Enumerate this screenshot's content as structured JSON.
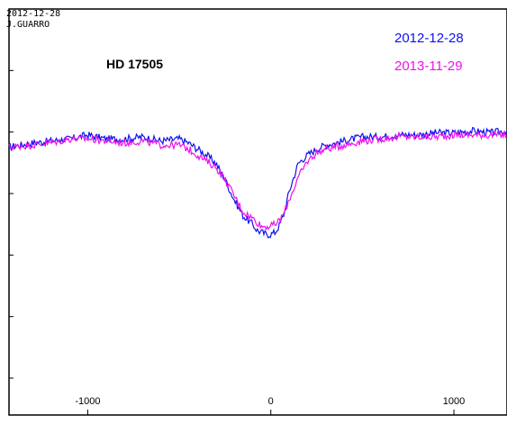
{
  "chart_data": {
    "type": "line",
    "header_date": "2012-12-28",
    "header_observer": "J.GUARRO",
    "title": "HD 17505",
    "xlabel": "",
    "ylabel": "",
    "xlim": [
      -1430,
      1290
    ],
    "ylim": [
      0.0,
      1.0
    ],
    "x_ticks": [
      -1000,
      0,
      1000
    ],
    "grid": false,
    "legend_position": "top-right",
    "series": [
      {
        "name": "2012-12-28",
        "color": "#1010ee",
        "x": [
          -1430,
          -1300,
          -1200,
          -1100,
          -1000,
          -900,
          -800,
          -700,
          -600,
          -500,
          -450,
          -400,
          -350,
          -300,
          -250,
          -200,
          -150,
          -100,
          -75,
          -50,
          -25,
          0,
          25,
          50,
          75,
          100,
          150,
          200,
          250,
          300,
          400,
          500,
          600,
          700,
          800,
          900,
          1000,
          1100,
          1200,
          1290
        ],
        "y": [
          0.66,
          0.67,
          0.675,
          0.68,
          0.69,
          0.68,
          0.68,
          0.685,
          0.675,
          0.68,
          0.67,
          0.655,
          0.64,
          0.62,
          0.58,
          0.53,
          0.49,
          0.47,
          0.455,
          0.45,
          0.445,
          0.445,
          0.45,
          0.47,
          0.5,
          0.55,
          0.62,
          0.64,
          0.655,
          0.665,
          0.675,
          0.685,
          0.685,
          0.69,
          0.69,
          0.695,
          0.695,
          0.7,
          0.695,
          0.7
        ]
      },
      {
        "name": "2013-11-29",
        "color": "#ee10ee",
        "x": [
          -1430,
          -1300,
          -1200,
          -1100,
          -1000,
          -900,
          -800,
          -700,
          -600,
          -500,
          -450,
          -400,
          -350,
          -300,
          -250,
          -200,
          -150,
          -100,
          -75,
          -50,
          -25,
          0,
          25,
          50,
          75,
          100,
          150,
          200,
          250,
          300,
          400,
          500,
          600,
          700,
          800,
          900,
          1000,
          1100,
          1200,
          1290
        ],
        "y": [
          0.66,
          0.665,
          0.67,
          0.68,
          0.68,
          0.675,
          0.67,
          0.675,
          0.665,
          0.665,
          0.655,
          0.64,
          0.625,
          0.61,
          0.58,
          0.54,
          0.5,
          0.485,
          0.475,
          0.465,
          0.465,
          0.465,
          0.47,
          0.48,
          0.5,
          0.53,
          0.585,
          0.625,
          0.645,
          0.655,
          0.665,
          0.675,
          0.68,
          0.685,
          0.685,
          0.685,
          0.69,
          0.69,
          0.69,
          0.69
        ]
      }
    ]
  }
}
